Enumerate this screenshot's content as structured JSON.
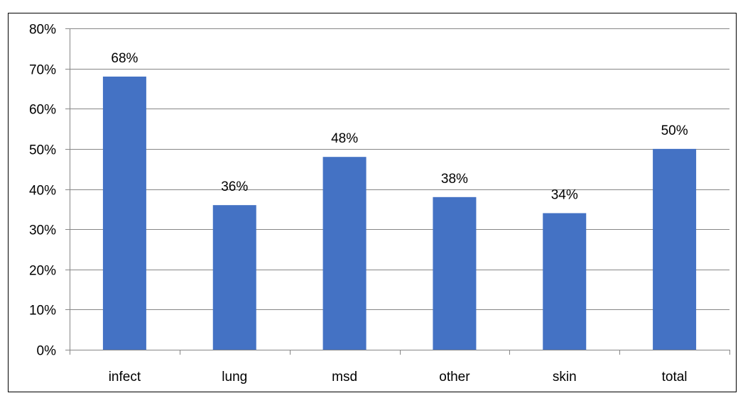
{
  "chart_data": {
    "type": "bar",
    "title": "",
    "xlabel": "",
    "ylabel": "",
    "categories": [
      "infect",
      "lung",
      "msd",
      "other",
      "skin",
      "total"
    ],
    "values": [
      68,
      36,
      48,
      38,
      34,
      50
    ],
    "data_labels": [
      "68%",
      "36%",
      "48%",
      "38%",
      "34%",
      "50%"
    ],
    "ylim": [
      0,
      80
    ],
    "y_ticks": [
      0,
      10,
      20,
      30,
      40,
      50,
      60,
      70,
      80
    ],
    "y_tick_labels": [
      "0%",
      "10%",
      "20%",
      "30%",
      "40%",
      "50%",
      "60%",
      "70%",
      "80%"
    ],
    "grid": true,
    "legend": "none",
    "colors": {
      "bar": "#4472C4",
      "grid": "#868686",
      "frame": "#000000"
    }
  }
}
